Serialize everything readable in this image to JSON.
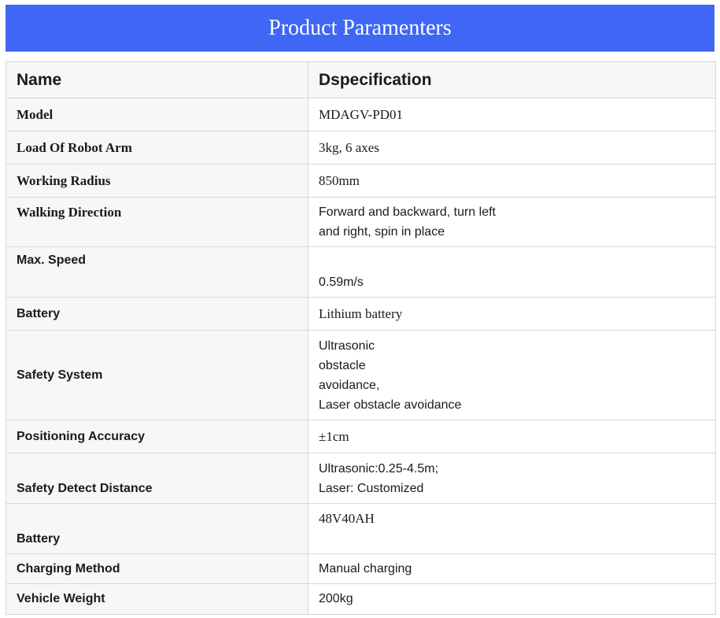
{
  "banner": {
    "title": "Product Paramenters"
  },
  "table": {
    "headers": {
      "name": "Name",
      "spec": "Dspecification"
    },
    "rows": [
      {
        "name": "Model",
        "value_lines": [
          "MDAGV-PD01"
        ]
      },
      {
        "name": "Load Of Robot Arm",
        "value_lines": [
          "3kg, 6 axes"
        ]
      },
      {
        "name": "Working Radius",
        "value_lines": [
          "850mm"
        ]
      },
      {
        "name": "Walking Direction",
        "value_lines": [
          "Forward and backward, turn left",
          "and right, spin in place"
        ]
      },
      {
        "name": "Max. Speed",
        "value_lines": [
          "0.59m/s"
        ]
      },
      {
        "name": "Battery",
        "value_lines": [
          "Lithium battery"
        ]
      },
      {
        "name": "Safety System",
        "value_lines": [
          "Ultrasonic",
          "obstacle",
          "avoidance,",
          "Laser obstacle avoidance"
        ]
      },
      {
        "name": "Positioning Accuracy",
        "value_lines": [
          "±1cm"
        ]
      },
      {
        "name": "Safety Detect Distance",
        "value_lines": [
          "Ultrasonic:0.25-4.5m;",
          "Laser: Customized"
        ]
      },
      {
        "name": "Battery",
        "value_lines": [
          "48V40AH"
        ]
      },
      {
        "name": "Charging Method",
        "value_lines": [
          "Manual charging"
        ]
      },
      {
        "name": "Vehicle Weight",
        "value_lines": [
          "200kg"
        ]
      }
    ]
  }
}
